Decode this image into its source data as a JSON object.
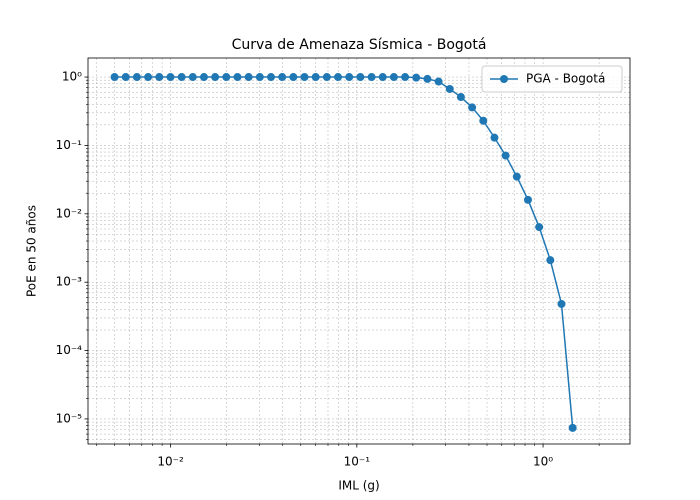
{
  "chart_data": {
    "type": "line",
    "title": "Curva de Amenaza Sísmica - Bogotá",
    "x_label": "IML (g)",
    "y_label": "PoE en 50 años",
    "x_scale": "log",
    "y_scale": "log",
    "grid": true,
    "legend_position": "upper right",
    "x": [
      0.005,
      0.00574,
      0.00659,
      0.00757,
      0.00869,
      0.00998,
      0.01146,
      0.01315,
      0.0151,
      0.01734,
      0.0199,
      0.02286,
      0.02624,
      0.03013,
      0.03459,
      0.03972,
      0.0456,
      0.05236,
      0.06012,
      0.06902,
      0.07925,
      0.091,
      0.1045,
      0.12,
      0.1377,
      0.1581,
      0.1816,
      0.2084,
      0.2393,
      0.2748,
      0.3155,
      0.3622,
      0.4159,
      0.4775,
      0.5483,
      0.6295,
      0.7228,
      0.8299,
      0.9528,
      1.094,
      1.256,
      1.442
    ],
    "series": [
      {
        "name": "PGA - Bogotá",
        "color": "#1f77b4",
        "values": [
          1,
          1,
          1,
          1,
          1,
          1,
          1,
          1,
          1,
          1,
          1,
          1,
          1,
          1,
          1,
          1,
          1,
          1,
          1,
          1,
          1,
          1,
          1,
          1,
          1,
          1,
          1,
          0.98,
          0.94,
          0.86,
          0.67,
          0.51,
          0.36,
          0.23,
          0.13,
          0.071,
          0.035,
          0.016,
          0.0064,
          0.0021,
          0.00048,
          7.4e-06
        ]
      }
    ],
    "xlim": [
      0.0036,
      2.93
    ],
    "ylim": [
      4.3e-06,
      1.9
    ],
    "xticks": [
      {
        "value": 0.01,
        "label": "10⁻²"
      },
      {
        "value": 0.1,
        "label": "10⁻¹"
      },
      {
        "value": 1,
        "label": "10⁰"
      }
    ],
    "yticks": [
      {
        "value": 1e-05,
        "label": "10⁻⁵"
      },
      {
        "value": 0.0001,
        "label": "10⁻⁴"
      },
      {
        "value": 0.001,
        "label": "10⁻³"
      },
      {
        "value": 0.01,
        "label": "10⁻²"
      },
      {
        "value": 0.1,
        "label": "10⁻¹"
      },
      {
        "value": 1,
        "label": "10⁰"
      }
    ],
    "xminorticks": [
      0.004,
      0.005,
      0.006,
      0.007,
      0.008,
      0.009,
      0.02,
      0.03,
      0.04,
      0.05,
      0.06,
      0.07,
      0.08,
      0.09,
      0.2,
      0.3,
      0.4,
      0.5,
      0.6,
      0.7,
      0.8,
      0.9,
      2
    ],
    "yminorticks": [
      5e-06,
      6e-06,
      7e-06,
      8e-06,
      9e-06,
      2e-05,
      3e-05,
      4e-05,
      5e-05,
      6e-05,
      7e-05,
      8e-05,
      9e-05,
      0.0002,
      0.0003,
      0.0004,
      0.0005,
      0.0006,
      0.0007,
      0.0008,
      0.0009,
      0.002,
      0.003,
      0.004,
      0.005,
      0.006,
      0.007,
      0.008,
      0.009,
      0.02,
      0.03,
      0.04,
      0.05,
      0.06,
      0.07,
      0.08,
      0.09,
      0.2,
      0.3,
      0.4,
      0.5,
      0.6,
      0.7,
      0.8,
      0.9
    ]
  }
}
